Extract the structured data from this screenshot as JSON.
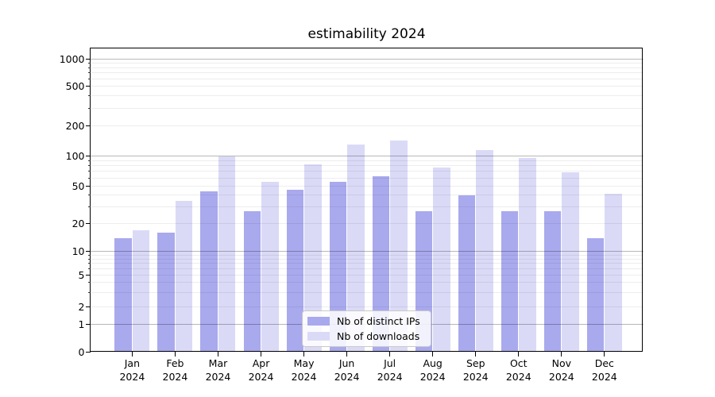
{
  "chart_data": {
    "type": "bar",
    "title": "estimability 2024",
    "categories": [
      "Jan 2024",
      "Feb 2024",
      "Mar 2024",
      "Apr 2024",
      "May 2024",
      "Jun 2024",
      "Jul 2024",
      "Aug 2024",
      "Sep 2024",
      "Oct 2024",
      "Nov 2024",
      "Dec 2024"
    ],
    "series": [
      {
        "name": "Nb of distinct IPs",
        "color": "#a9a9ee",
        "values": [
          14,
          16,
          44,
          27,
          45,
          55,
          62,
          27,
          40,
          27,
          27,
          14
        ]
      },
      {
        "name": "Nb of downloads",
        "color": "#dadaf7",
        "values": [
          17,
          35,
          100,
          55,
          82,
          130,
          142,
          76,
          114,
          95,
          68,
          41
        ]
      }
    ],
    "xlabel": "",
    "ylabel": "",
    "yscale": "symlog",
    "ylim": [
      0,
      1200
    ],
    "yticks": [
      0,
      1,
      2,
      5,
      10,
      20,
      50,
      100,
      200,
      500,
      1000
    ],
    "ytick_labels": [
      "0",
      "1",
      "2",
      "5",
      "10",
      "20",
      "50",
      "100",
      "200",
      "500",
      "1000"
    ],
    "grid": true,
    "legend_position": "lower center"
  }
}
